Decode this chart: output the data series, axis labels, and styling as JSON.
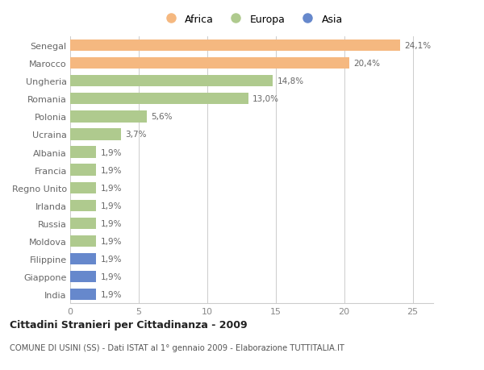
{
  "categories": [
    "Senegal",
    "Marocco",
    "Ungheria",
    "Romania",
    "Polonia",
    "Ucraina",
    "Albania",
    "Francia",
    "Regno Unito",
    "Irlanda",
    "Russia",
    "Moldova",
    "Filippine",
    "Giappone",
    "India"
  ],
  "values": [
    24.1,
    20.4,
    14.8,
    13.0,
    5.6,
    3.7,
    1.9,
    1.9,
    1.9,
    1.9,
    1.9,
    1.9,
    1.9,
    1.9,
    1.9
  ],
  "labels": [
    "24,1%",
    "20,4%",
    "14,8%",
    "13,0%",
    "5,6%",
    "3,7%",
    "1,9%",
    "1,9%",
    "1,9%",
    "1,9%",
    "1,9%",
    "1,9%",
    "1,9%",
    "1,9%",
    "1,9%"
  ],
  "continent": [
    "Africa",
    "Africa",
    "Europa",
    "Europa",
    "Europa",
    "Europa",
    "Europa",
    "Europa",
    "Europa",
    "Europa",
    "Europa",
    "Europa",
    "Asia",
    "Asia",
    "Asia"
  ],
  "colors": {
    "Africa": "#F5B880",
    "Europa": "#AFCA8E",
    "Asia": "#6688CC"
  },
  "legend_labels": [
    "Africa",
    "Europa",
    "Asia"
  ],
  "legend_colors": [
    "#F5B880",
    "#AFCA8E",
    "#6688CC"
  ],
  "title": "Cittadini Stranieri per Cittadinanza - 2009",
  "subtitle": "COMUNE DI USINI (SS) - Dati ISTAT al 1° gennaio 2009 - Elaborazione TUTTITALIA.IT",
  "xlim": [
    0,
    26.5
  ],
  "xticks": [
    0,
    5,
    10,
    15,
    20,
    25
  ],
  "bg_color": "#FFFFFF",
  "grid_color": "#CCCCCC",
  "label_color": "#666666",
  "tick_color": "#888888"
}
